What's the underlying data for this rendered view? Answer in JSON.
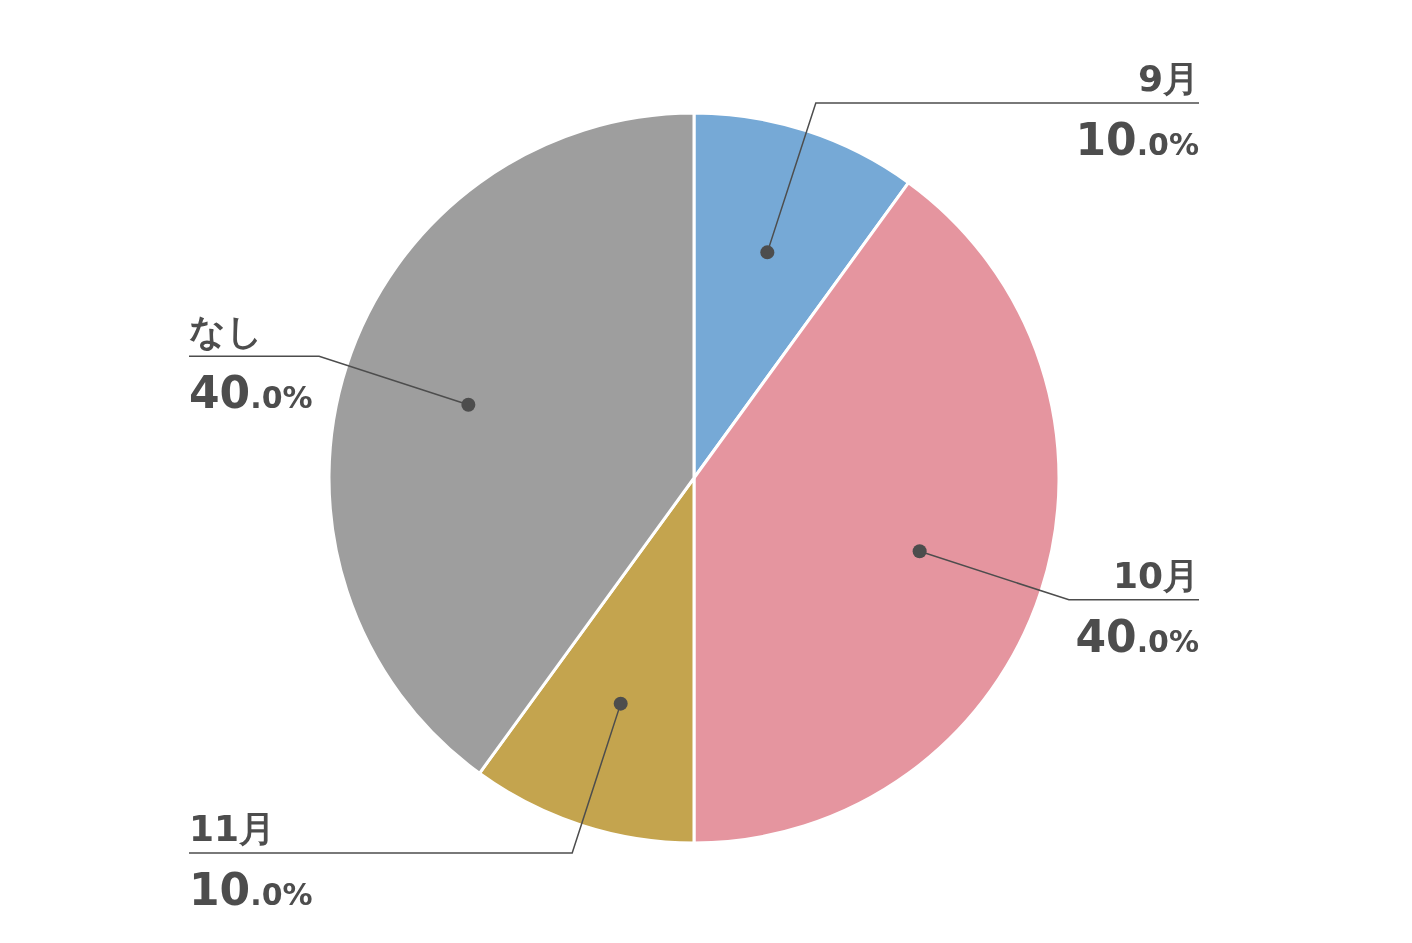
{
  "chart_data": {
    "type": "pie",
    "categories": [
      "9月",
      "10月",
      "11月",
      "なし"
    ],
    "values": [
      10,
      40,
      10,
      40
    ],
    "colors": [
      "#76a9d6",
      "#e5959f",
      "#c4a44e",
      "#9e9e9e"
    ],
    "value_labels": [
      "10.0%",
      "40.0%",
      "10.0%",
      "40.0%"
    ]
  }
}
